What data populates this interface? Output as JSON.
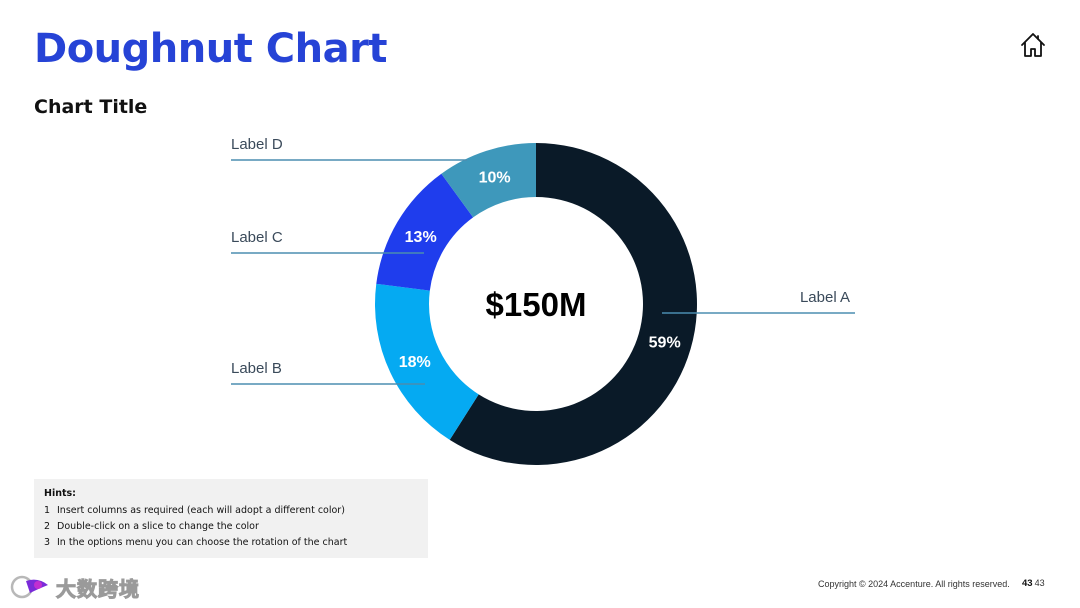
{
  "slide": {
    "title": "Doughnut Chart",
    "chart_title": "Chart Title"
  },
  "chart_data": {
    "type": "pie",
    "variant": "doughnut",
    "title": "Chart Title",
    "center_label": "$150M",
    "categories": [
      "Label A",
      "Label B",
      "Label C",
      "Label D"
    ],
    "values": [
      59,
      18,
      13,
      10
    ],
    "value_labels": [
      "59%",
      "18%",
      "13%",
      "10%"
    ],
    "colors": [
      "#0a1a28",
      "#05aaf2",
      "#1f3ded",
      "#3e98bb"
    ],
    "start_angle_deg": 0,
    "direction": "clockwise",
    "legend": "leader-line labels"
  },
  "hints": {
    "title": "Hints:",
    "items": [
      {
        "num": "1",
        "text": "Insert columns as required (each will adopt a different color)"
      },
      {
        "num": "2",
        "text": "Double-click on a slice to change the color"
      },
      {
        "num": "3",
        "text": "In the options menu you can choose the rotation of the chart"
      }
    ]
  },
  "footer": {
    "copyright": "Copyright © 2024 Accenture. All rights reserved.",
    "page_bold": "43",
    "page": "43"
  },
  "watermark": {
    "text": "大数跨境",
    "icon": "watermark-logo-icon"
  },
  "icons": {
    "home": "home-icon"
  },
  "colors": {
    "title_blue": "#2643d6",
    "leader_line": "#4b8db0",
    "label_text": "#3a4a5a",
    "hints_bg": "#f1f1f1"
  }
}
